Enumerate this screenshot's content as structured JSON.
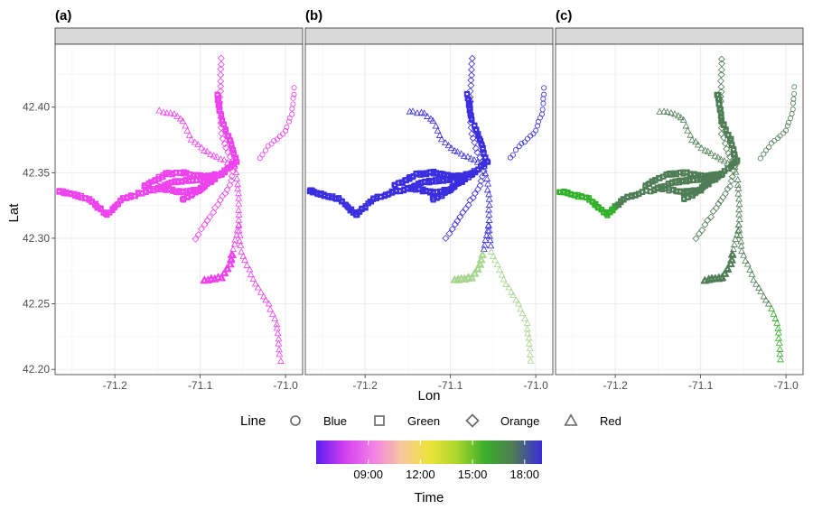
{
  "chart_data": [
    {
      "type": "scatter",
      "panel_tag": "(a)",
      "color_mode": "morning",
      "xlabel": "Lon",
      "ylabel": "Lat",
      "xlim": [
        -71.27,
        -70.98
      ],
      "ylim": [
        42.196,
        42.448
      ],
      "x_ticks": [
        -71.2,
        -71.1,
        -71.0
      ],
      "x_tick_labels": [
        "-71.2",
        "-71.1",
        "-71.0"
      ],
      "y_ticks": [
        42.2,
        42.25,
        42.3,
        42.35,
        42.4
      ],
      "y_tick_labels": [
        "42.20",
        "42.25",
        "42.30",
        "42.35",
        "42.40"
      ],
      "grid": true
    },
    {
      "type": "scatter",
      "panel_tag": "(b)",
      "color_mode": "evening",
      "xlabel": "Lon",
      "ylabel": "",
      "xlim": [
        -71.27,
        -70.98
      ],
      "ylim": [
        42.196,
        42.448
      ],
      "x_ticks": [
        -71.2,
        -71.1,
        -71.0
      ],
      "x_tick_labels": [
        "-71.2",
        "-71.1",
        "-71.0"
      ],
      "y_ticks": [
        42.2,
        42.25,
        42.3,
        42.35,
        42.4
      ],
      "y_tick_labels": [],
      "grid": true
    },
    {
      "type": "scatter",
      "panel_tag": "(c)",
      "color_mode": "afternoon",
      "xlabel": "Lon",
      "ylabel": "",
      "xlim": [
        -71.27,
        -70.98
      ],
      "ylim": [
        42.196,
        42.448
      ],
      "x_ticks": [
        -71.2,
        -71.1,
        -71.0
      ],
      "x_tick_labels": [
        "-71.2",
        "-71.1",
        "-71.0"
      ],
      "y_ticks": [
        42.2,
        42.25,
        42.3,
        42.35,
        42.4
      ],
      "y_tick_labels": [],
      "grid": true
    }
  ],
  "routes": {
    "Blue": {
      "shape": "circle",
      "path": [
        [
          -71.03,
          42.361
        ],
        [
          -71.02,
          42.37
        ],
        [
          -71.0,
          42.382
        ],
        [
          -70.993,
          42.395
        ],
        [
          -70.99,
          42.41
        ],
        [
          -70.99,
          42.415
        ]
      ]
    },
    "Green": {
      "shape": "square",
      "branches": [
        [
          [
            -71.057,
            42.359
          ],
          [
            -71.075,
            42.349
          ],
          [
            -71.095,
            42.347
          ],
          [
            -71.12,
            42.35
          ],
          [
            -71.14,
            42.349
          ],
          [
            -71.165,
            42.34
          ]
        ],
        [
          [
            -71.075,
            42.349
          ],
          [
            -71.1,
            42.345
          ],
          [
            -71.13,
            42.343
          ],
          [
            -71.15,
            42.338
          ],
          [
            -71.168,
            42.335
          ],
          [
            -71.19,
            42.33
          ],
          [
            -71.21,
            42.318
          ],
          [
            -71.23,
            42.33
          ],
          [
            -71.265,
            42.336
          ]
        ],
        [
          [
            -71.085,
            42.347
          ],
          [
            -71.1,
            42.337
          ],
          [
            -71.12,
            42.335
          ],
          [
            -71.145,
            42.338
          ]
        ],
        [
          [
            -71.075,
            42.349
          ],
          [
            -71.095,
            42.34
          ],
          [
            -71.11,
            42.333
          ],
          [
            -71.12,
            42.33
          ]
        ],
        [
          [
            -71.059,
            42.361
          ],
          [
            -71.065,
            42.375
          ],
          [
            -71.075,
            42.39
          ],
          [
            -71.08,
            42.41
          ]
        ]
      ]
    },
    "Orange": {
      "shape": "diamond",
      "branches": [
        [
          [
            -71.075,
            42.437
          ],
          [
            -71.076,
            42.42
          ],
          [
            -71.077,
            42.4
          ],
          [
            -71.075,
            42.38
          ],
          [
            -71.068,
            42.365
          ],
          [
            -71.06,
            42.355
          ],
          [
            -71.065,
            42.34
          ],
          [
            -71.085,
            42.32
          ],
          [
            -71.095,
            42.31
          ],
          [
            -71.105,
            42.3
          ]
        ]
      ]
    },
    "Red": {
      "shape": "triangle",
      "branches": [
        [
          [
            -71.148,
            42.397
          ],
          [
            -71.13,
            42.395
          ],
          [
            -71.12,
            42.39
          ],
          [
            -71.11,
            42.375
          ],
          [
            -71.095,
            42.367
          ],
          [
            -71.08,
            42.362
          ],
          [
            -71.06,
            42.355
          ],
          [
            -71.057,
            42.345
          ],
          [
            -71.055,
            42.33
          ],
          [
            -71.055,
            42.31
          ],
          [
            -71.052,
            42.29
          ],
          [
            -71.045,
            42.28
          ],
          [
            -71.035,
            42.265
          ],
          [
            -71.02,
            42.25
          ],
          [
            -71.01,
            42.235
          ],
          [
            -71.008,
            42.22
          ],
          [
            -71.006,
            42.207
          ]
        ],
        [
          [
            -71.055,
            42.31
          ],
          [
            -71.06,
            42.295
          ],
          [
            -71.065,
            42.28
          ],
          [
            -71.075,
            42.27
          ],
          [
            -71.095,
            42.268
          ]
        ]
      ]
    }
  },
  "legend": {
    "line_title": "Line",
    "items": [
      {
        "label": "Blue",
        "shape": "circle"
      },
      {
        "label": "Green",
        "shape": "square"
      },
      {
        "label": "Orange",
        "shape": "diamond"
      },
      {
        "label": "Red",
        "shape": "triangle"
      }
    ]
  },
  "colorbar": {
    "title": "Time",
    "tick_labels": [
      "09:00",
      "12:00",
      "15:00",
      "18:00"
    ],
    "tick_values": [
      9,
      12,
      15,
      18
    ],
    "range": [
      6,
      19
    ],
    "stops": [
      "#5b1ef0",
      "#d13ef0",
      "#f27ee8",
      "#f7c6a0",
      "#eee33a",
      "#a9d52b",
      "#3aae2c",
      "#4f7a55",
      "#3a2bdd"
    ]
  },
  "colors": {
    "magenta": "#ee42ee",
    "blue": "#3a2ee0",
    "green_dark": "#4f7d55",
    "green_bright": "#33b02a",
    "green_light": "#a8d58f",
    "strip_fill": "#d9d9d9",
    "grid": "#ebebeb",
    "border": "#333333"
  }
}
